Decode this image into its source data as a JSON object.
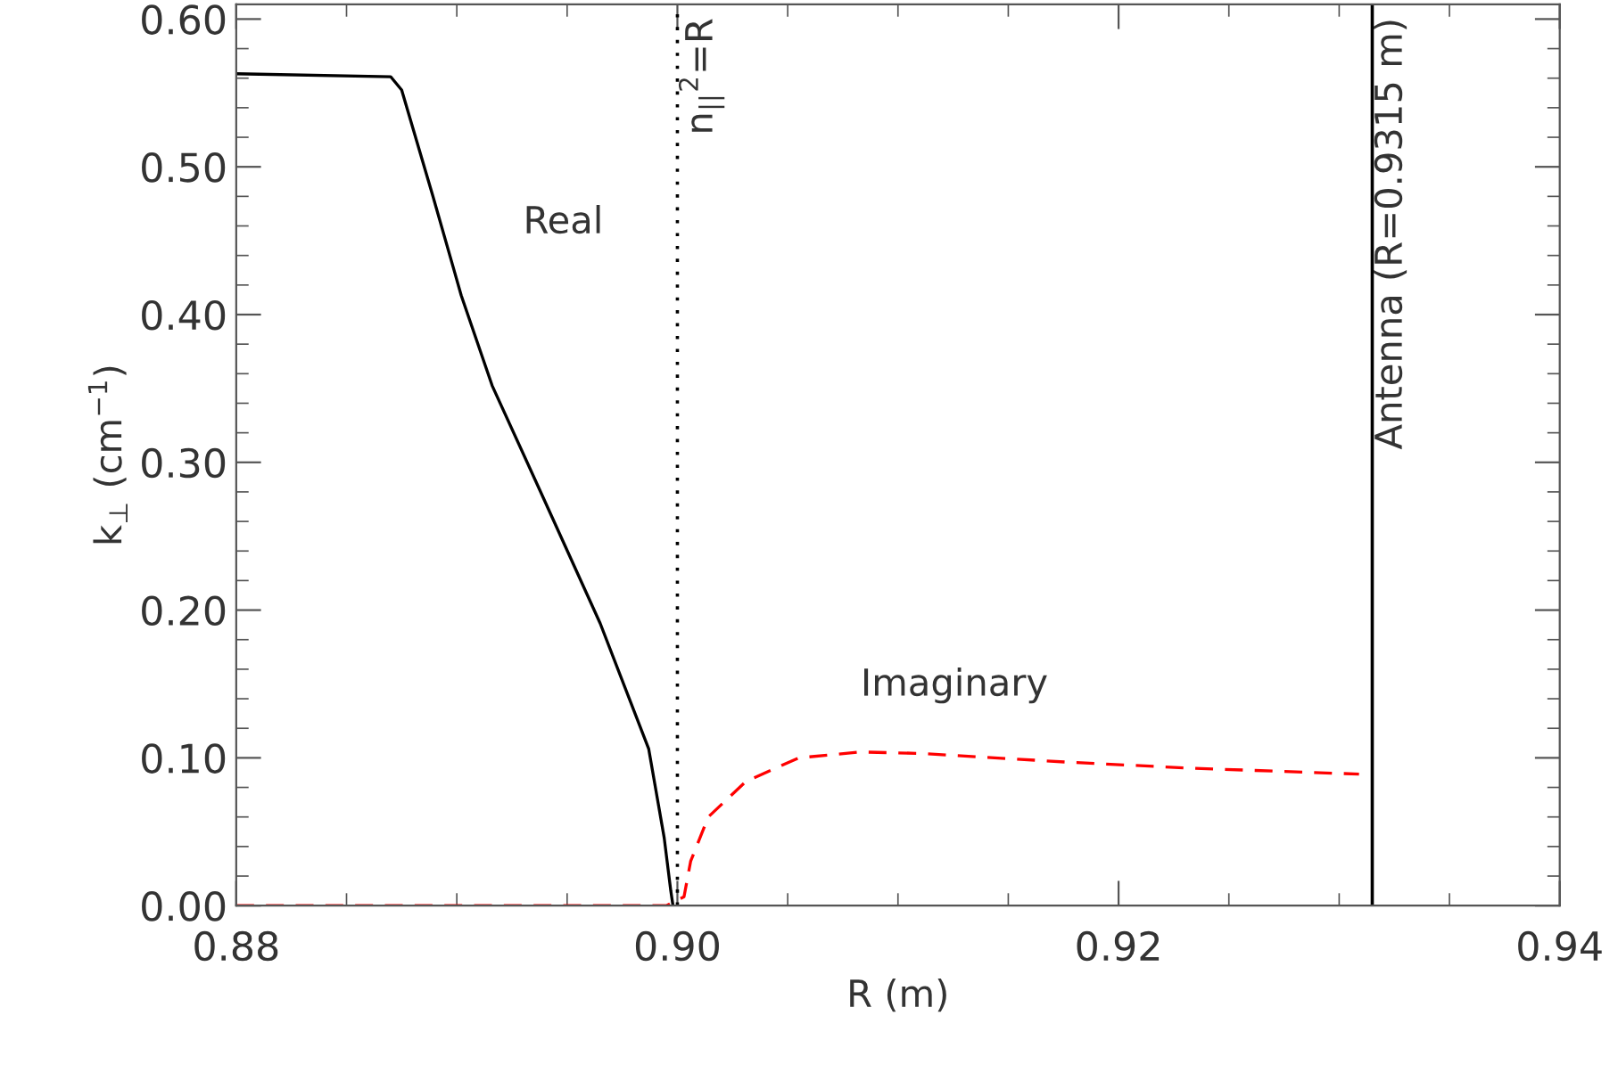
{
  "chart_data": {
    "type": "line",
    "xlabel": "R (m)",
    "ylabel": "k$_{⊥}$ (cm$^{−1}$)",
    "xlim": [
      0.88,
      0.94
    ],
    "xticks": [
      {
        "value": 0.88,
        "label": "0.88"
      },
      {
        "value": 0.9,
        "label": "0.90"
      },
      {
        "value": 0.92,
        "label": "0.92"
      },
      {
        "value": 0.94,
        "label": "0.94"
      }
    ],
    "ylim": [
      0,
      0.61
    ],
    "yticks": [
      {
        "value": 0,
        "label": "0.00"
      },
      {
        "value": 0.1,
        "label": "0.10"
      },
      {
        "value": 0.2,
        "label": "0.20"
      },
      {
        "value": 0.3,
        "label": "0.30"
      },
      {
        "value": 0.4,
        "label": "0.40"
      },
      {
        "value": 0.5,
        "label": "0.50"
      },
      {
        "value": 0.6,
        "label": "0.60"
      }
    ],
    "grid": false,
    "legend": false,
    "series": [
      {
        "name": "Real",
        "color": "#000000",
        "line_style": "solid",
        "x": [
          0.88,
          0.887,
          0.8875,
          0.8889,
          0.8902,
          0.8916,
          0.8938,
          0.8965,
          0.8987,
          0.8994,
          0.8997,
          0.8998
        ],
        "values": [
          0.563,
          0.561,
          0.552,
          0.481,
          0.413,
          0.352,
          0.28,
          0.191,
          0.106,
          0.046,
          0.01,
          0.0
        ]
      },
      {
        "name": "Imaginary",
        "color": "#ff0000",
        "line_style": "dashed",
        "x": [
          0.88,
          0.8995,
          0.9003,
          0.9006,
          0.9014,
          0.9031,
          0.9055,
          0.9083,
          0.911,
          0.9178,
          0.9233,
          0.9309
        ],
        "values": [
          0.0,
          0.0,
          0.006,
          0.03,
          0.06,
          0.084,
          0.1,
          0.104,
          0.103,
          0.097,
          0.093,
          0.089
        ]
      }
    ],
    "ref_lines": [
      {
        "axis": "x",
        "value": 0.9,
        "label": "n$_{||}$$^{2}$=R",
        "color": "#000000",
        "line_style": "dotted"
      },
      {
        "axis": "x",
        "value": 0.9315,
        "label": "Antenna (R=0.9315 m)",
        "color": "#000000",
        "line_style": "solid"
      }
    ]
  }
}
